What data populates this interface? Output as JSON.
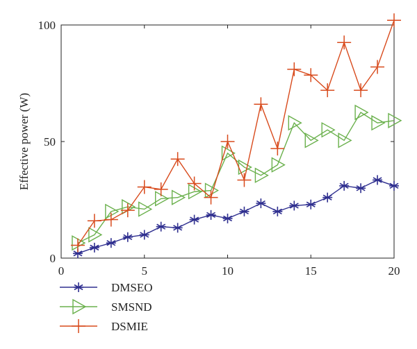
{
  "chart_data": {
    "type": "line",
    "title": "",
    "xlabel": "",
    "ylabel": "Effective power (W)",
    "xlim": [
      0,
      20
    ],
    "ylim": [
      0,
      100
    ],
    "xticks": [
      0,
      5,
      10,
      15,
      20
    ],
    "yticks": [
      0,
      50,
      100
    ],
    "grid": false,
    "legend_position": "bottom-left",
    "x": [
      1,
      2,
      3,
      4,
      5,
      6,
      7,
      8,
      9,
      10,
      11,
      12,
      13,
      14,
      15,
      16,
      17,
      18,
      19,
      20
    ],
    "series": [
      {
        "name": "DMSEO",
        "color": "#2e2e8f",
        "marker": "asterisk",
        "values": [
          2,
          4.5,
          6.5,
          9,
          10,
          13.5,
          13,
          16.5,
          18.5,
          17,
          20,
          23.5,
          20,
          22.5,
          23,
          26,
          31,
          30,
          33.5,
          31
        ]
      },
      {
        "name": "SMSND",
        "color": "#6ab04c",
        "marker": "triangle-right",
        "values": [
          6.5,
          10,
          20,
          22,
          21,
          25.5,
          26,
          28.5,
          29,
          45,
          39,
          35.5,
          40,
          58,
          50.5,
          55,
          50.5,
          62.5,
          58,
          59
        ]
      },
      {
        "name": "DSMIE",
        "color": "#d84a1c",
        "marker": "plus",
        "values": [
          5.5,
          16,
          16.5,
          20.5,
          30.5,
          29.5,
          42.5,
          32,
          26,
          50,
          33.5,
          66,
          47,
          81,
          78.5,
          72,
          92.5,
          72,
          82,
          102
        ]
      }
    ]
  }
}
